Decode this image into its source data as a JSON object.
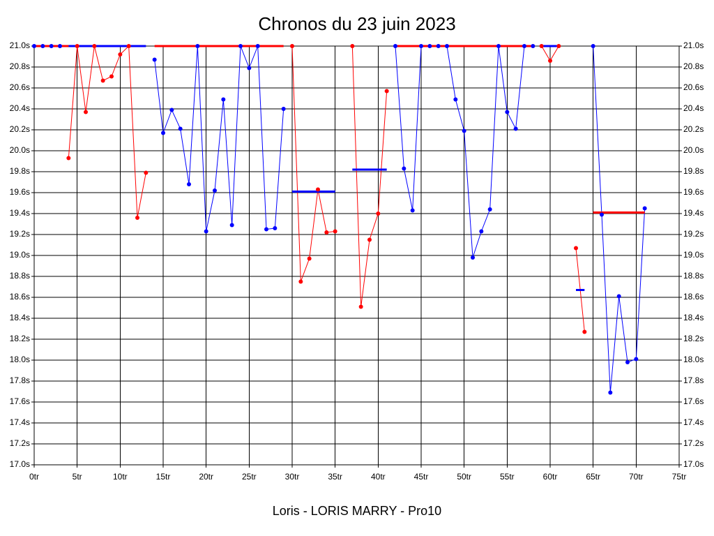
{
  "chart_data": {
    "type": "line",
    "title": "Chronos du 23 juin 2023",
    "x_label": "Loris - LORIS MARRY - Pro10",
    "grid": true,
    "xlim": [
      0,
      75
    ],
    "ylim": [
      17.0,
      21.0
    ],
    "xticks": [
      {
        "value": 0,
        "label": "0tr"
      },
      {
        "value": 5,
        "label": "5tr"
      },
      {
        "value": 10,
        "label": "10tr"
      },
      {
        "value": 15,
        "label": "15tr"
      },
      {
        "value": 20,
        "label": "20tr"
      },
      {
        "value": 25,
        "label": "25tr"
      },
      {
        "value": 30,
        "label": "30tr"
      },
      {
        "value": 35,
        "label": "35tr"
      },
      {
        "value": 40,
        "label": "40tr"
      },
      {
        "value": 45,
        "label": "45tr"
      },
      {
        "value": 50,
        "label": "50tr"
      },
      {
        "value": 55,
        "label": "55tr"
      },
      {
        "value": 60,
        "label": "60tr"
      },
      {
        "value": 65,
        "label": "65tr"
      },
      {
        "value": 70,
        "label": "70tr"
      },
      {
        "value": 75,
        "label": "75tr"
      }
    ],
    "yticks": [
      {
        "value": 17.0,
        "label": "17.0s"
      },
      {
        "value": 17.2,
        "label": "17.2s"
      },
      {
        "value": 17.4,
        "label": "17.4s"
      },
      {
        "value": 17.6,
        "label": "17.6s"
      },
      {
        "value": 17.8,
        "label": "17.8s"
      },
      {
        "value": 18.0,
        "label": "18.0s"
      },
      {
        "value": 18.2,
        "label": "18.2s"
      },
      {
        "value": 18.4,
        "label": "18.4s"
      },
      {
        "value": 18.6,
        "label": "18.6s"
      },
      {
        "value": 18.8,
        "label": "18.8s"
      },
      {
        "value": 19.0,
        "label": "19.0s"
      },
      {
        "value": 19.2,
        "label": "19.2s"
      },
      {
        "value": 19.4,
        "label": "19.4s"
      },
      {
        "value": 19.6,
        "label": "19.6s"
      },
      {
        "value": 19.8,
        "label": "19.8s"
      },
      {
        "value": 20.0,
        "label": "20.0s"
      },
      {
        "value": 20.2,
        "label": "20.2s"
      },
      {
        "value": 20.4,
        "label": "20.4s"
      },
      {
        "value": 20.6,
        "label": "20.6s"
      },
      {
        "value": 20.8,
        "label": "20.8s"
      },
      {
        "value": 21.0,
        "label": "21.0s"
      }
    ],
    "x": [
      0,
      1,
      2,
      3,
      4,
      5,
      6,
      7,
      8,
      9,
      10,
      11,
      12,
      13,
      14,
      15,
      16,
      17,
      18,
      19,
      20,
      21,
      22,
      23,
      24,
      25,
      26,
      27,
      28,
      29,
      30,
      31,
      32,
      33,
      34,
      35,
      36,
      37,
      38,
      39,
      40,
      41,
      42,
      43,
      44,
      45,
      46,
      47,
      48,
      49,
      50,
      51,
      52,
      53,
      54,
      55,
      56,
      57,
      58,
      59,
      60,
      61,
      62,
      63,
      64,
      65,
      66,
      67,
      68,
      69,
      70,
      71
    ],
    "series": [
      {
        "color": "#ff0000",
        "values": [
          null,
          null,
          null,
          null,
          19.93,
          21.0,
          20.37,
          21.0,
          20.67,
          20.71,
          20.92,
          21.0,
          19.36,
          19.79,
          null,
          null,
          null,
          null,
          null,
          null,
          null,
          null,
          null,
          null,
          null,
          null,
          null,
          null,
          null,
          null,
          21.0,
          18.75,
          18.97,
          19.63,
          19.22,
          19.23,
          null,
          21.0,
          18.51,
          19.15,
          19.4,
          20.57,
          null,
          null,
          null,
          null,
          null,
          null,
          null,
          null,
          null,
          null,
          null,
          null,
          null,
          null,
          null,
          null,
          null,
          21.0,
          20.86,
          21.0,
          null,
          19.07,
          18.27,
          null,
          null,
          null,
          null,
          null,
          null,
          null
        ]
      },
      {
        "color": "#0000ff",
        "values": [
          21.0,
          21.0,
          21.0,
          21.0,
          null,
          null,
          null,
          null,
          null,
          null,
          null,
          null,
          null,
          null,
          20.87,
          20.17,
          20.39,
          20.21,
          19.68,
          21.0,
          19.23,
          19.62,
          20.49,
          19.29,
          21.0,
          20.79,
          21.0,
          19.25,
          19.26,
          20.4,
          null,
          null,
          null,
          null,
          null,
          null,
          null,
          null,
          null,
          null,
          null,
          null,
          21.0,
          19.83,
          19.43,
          21.0,
          21.0,
          21.0,
          21.0,
          20.49,
          20.19,
          18.98,
          19.23,
          19.44,
          21.0,
          20.37,
          20.21,
          21.0,
          21.0,
          null,
          null,
          null,
          null,
          null,
          null,
          21.0,
          19.39,
          17.69,
          18.61,
          17.98,
          18.01,
          19.45
        ]
      }
    ],
    "averages": [
      {
        "color": "#ff0000",
        "x": [
          0,
          5
        ],
        "value": 21.0
      },
      {
        "color": "#0000ff",
        "x": [
          4,
          13
        ],
        "value": 21.0
      },
      {
        "color": "#ff0000",
        "x": [
          14,
          29
        ],
        "value": 21.0
      },
      {
        "color": "#0000ff",
        "x": [
          30,
          35
        ],
        "value": 19.61
      },
      {
        "color": "#0000ff",
        "x": [
          37,
          41
        ],
        "value": 19.82
      },
      {
        "color": "#ff0000",
        "x": [
          42,
          58
        ],
        "value": 21.0
      },
      {
        "color": "#0000ff",
        "x": [
          59,
          61
        ],
        "value": 21.0
      },
      {
        "color": "#0000ff",
        "x": [
          63,
          64
        ],
        "value": 18.67
      },
      {
        "color": "#ff0000",
        "x": [
          65,
          71
        ],
        "value": 19.41
      }
    ]
  }
}
